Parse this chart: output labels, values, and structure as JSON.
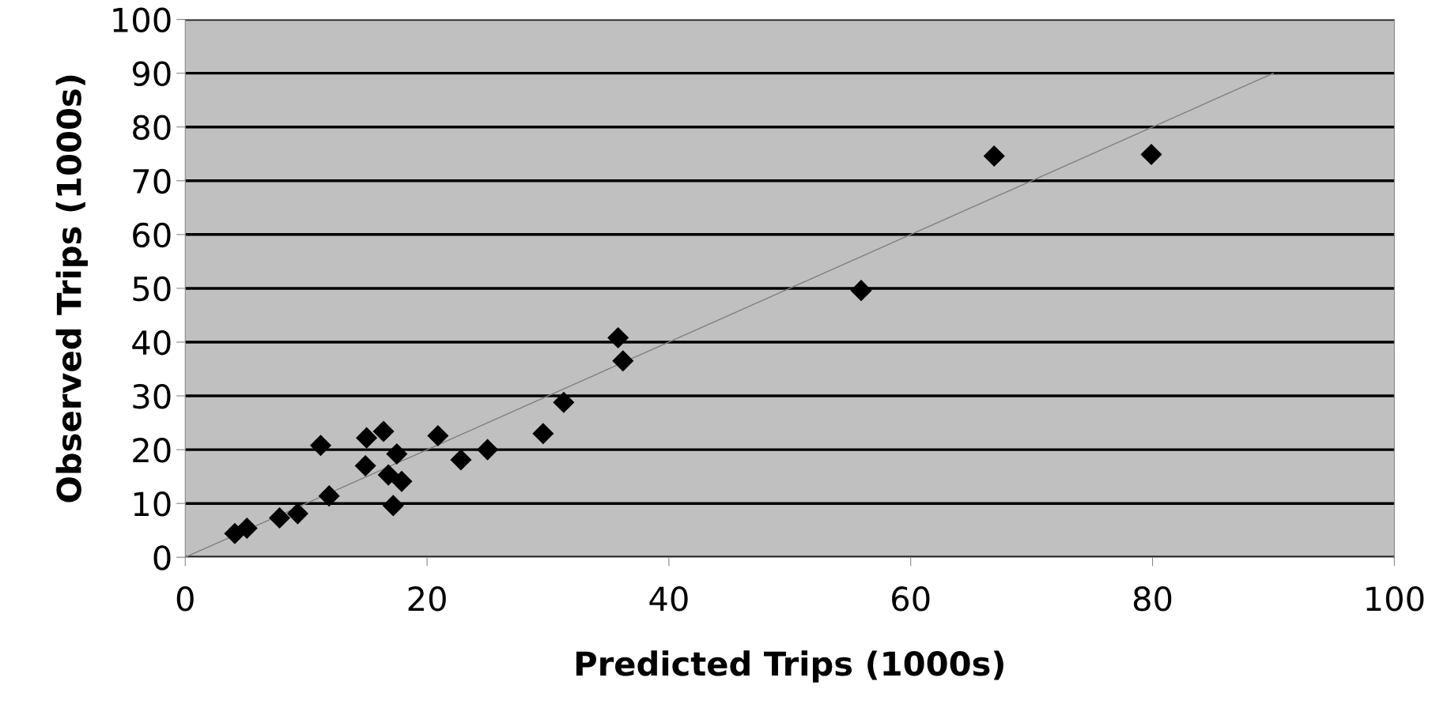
{
  "chart_data": {
    "type": "scatter",
    "xlabel": "Predicted Trips (1000s)",
    "ylabel": "Observed Trips (1000s)",
    "xlim": [
      0,
      100
    ],
    "xticks": [
      0,
      20,
      40,
      60,
      80,
      100
    ],
    "ylim": [
      0,
      100
    ],
    "yticks": [
      0,
      10,
      20,
      30,
      40,
      50,
      60,
      70,
      80,
      90,
      100
    ],
    "grid": "y",
    "legend": false,
    "series": [
      {
        "marker": "diamond",
        "color": "#000000",
        "x": [
          4.1,
          5.1,
          7.8,
          9.3,
          11.2,
          11.8,
          11.9,
          14.9,
          15.0,
          16.4,
          16.8,
          17.2,
          17.5,
          17.9,
          20.9,
          22.8,
          25.0,
          29.6,
          31.3,
          35.8,
          36.2,
          55.9,
          66.9,
          79.9
        ],
        "values": [
          4.4,
          5.4,
          7.3,
          8.1,
          20.8,
          null,
          11.4,
          17.0,
          22.2,
          23.4,
          15.3,
          9.6,
          19.2,
          14.1,
          22.6,
          18.1,
          20.0,
          23.0,
          28.8,
          40.8,
          36.5,
          49.6,
          74.6,
          74.9
        ]
      },
      {
        "type": "line",
        "marker": "none",
        "color": "#7f7f7f",
        "x": [
          0,
          90
        ],
        "values": [
          0,
          90
        ]
      }
    ]
  }
}
